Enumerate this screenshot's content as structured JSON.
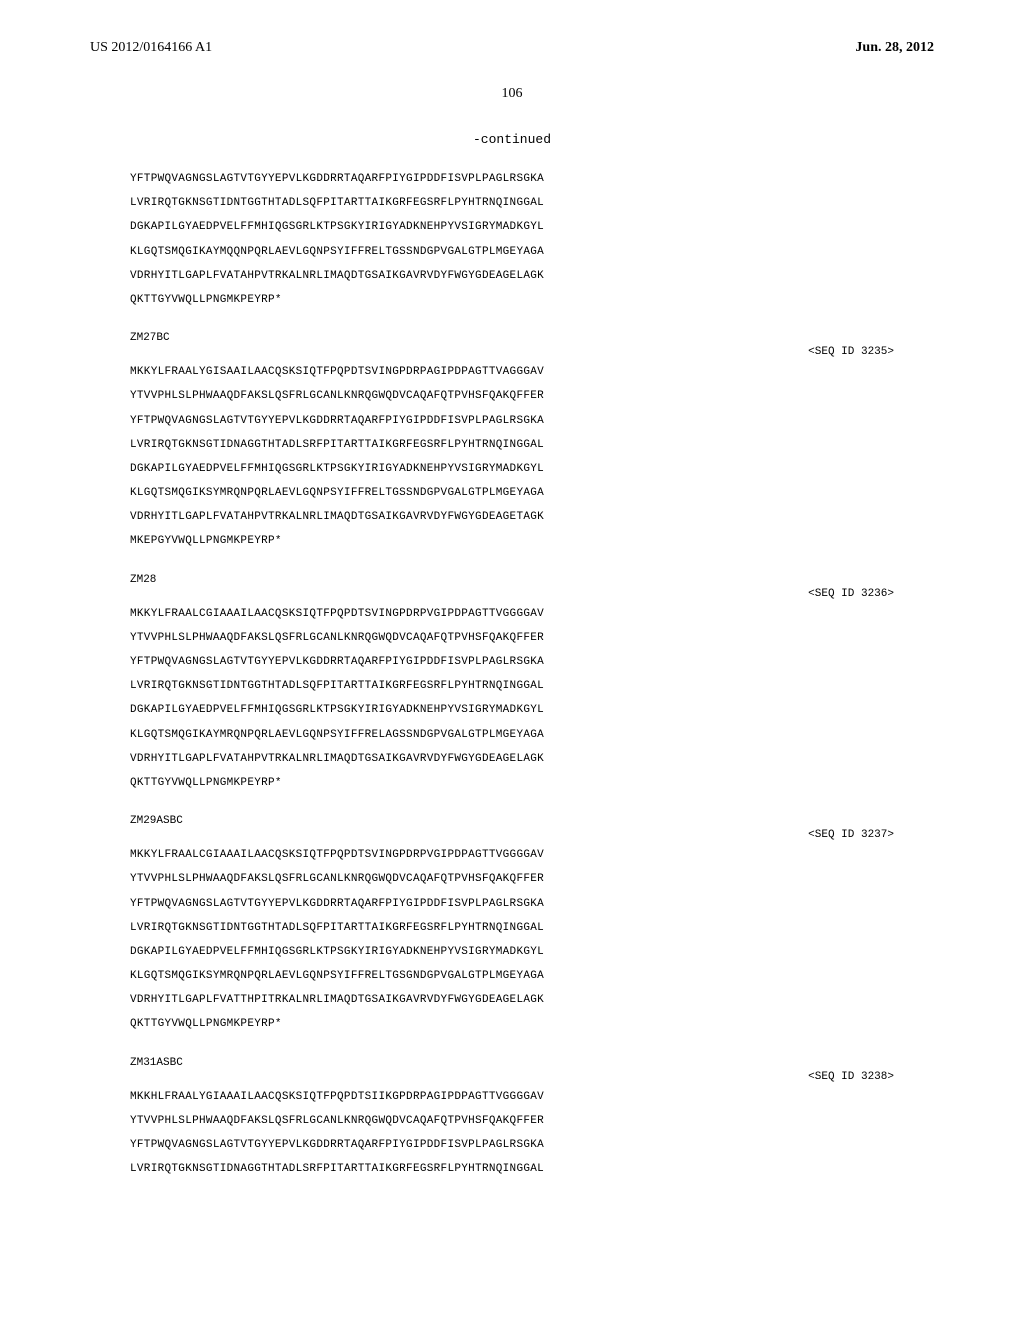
{
  "header": {
    "pub_number": "US 2012/0164166 A1",
    "pub_date": "Jun. 28, 2012"
  },
  "page_number": "106",
  "continued_label": "-continued",
  "sequences": [
    {
      "label": null,
      "seq_id": null,
      "lines": [
        "YFTPWQVAGNGSLAGTVTGYYEPVLKGDDRRTAQARFPIYGIPDDFISVPLPAGLRSGKA",
        "LVRIRQTGKNSGTIDNTGGTHTADLSQFPITARTTAIKGRFEGSRFLPYHTRNQINGGAL",
        "DGKAPILGYAEDPVELFFMHIQGSGRLKTPSGKYIRIGYADKNEHPYVSIGRYMADKGYL",
        "KLGQTSMQGIKAYMQQNPQRLAEVLGQNPSYIFFRELTGSSNDGPVGALGTPLMGEYAGA",
        "VDRHYITLGAPLFVATAHPVTRKALNRLIMAQDTGSAIKGAVRVDYFWGYGDEAGELAGK",
        "QKTTGYVWQLLPNGMKPEYRP*"
      ]
    },
    {
      "label": "ZM27BC",
      "seq_id": "<SEQ ID 3235>",
      "lines": [
        "MKKYLFRAALYGISAAILAACQSKSIQTFPQPDTSVINGPDRPAGIPDPAGTTVAGGGAV",
        "YTVVPHLSLPHWAAQDFAKSLQSFRLGCANLKNRQGWQDVCAQAFQTPVHSFQAKQFFER",
        "YFTPWQVAGNGSLAGTVTGYYEPVLKGDDRRTAQARFPIYGIPDDFISVPLPAGLRSGKA",
        "LVRIRQTGKNSGTIDNAGGTHTADLSRFPITARTTAIKGRFEGSRFLPYHTRNQINGGAL",
        "DGKAPILGYAEDPVELFFMHIQGSGRLKTPSGKYIRIGYADKNEHPYVSIGRYMADKGYL",
        "KLGQTSMQGIKSYMRQNPQRLAEVLGQNPSYIFFRELTGSSNDGPVGALGTPLMGEYAGA",
        "VDRHYITLGAPLFVATAHPVTRKALNRLIMAQDTGSAIKGAVRVDYFWGYGDEAGETAGK",
        "MKEPGYVWQLLPNGMKPEYRP*"
      ]
    },
    {
      "label": "ZM28",
      "seq_id": "<SEQ ID 3236>",
      "lines": [
        "MKKYLFRAALCGIAAAILAACQSKSIQTFPQPDTSVINGPDRPVGIPDPAGTTVGGGGAV",
        "YTVVPHLSLPHWAAQDFAKSLQSFRLGCANLKNRQGWQDVCAQAFQTPVHSFQAKQFFER",
        "YFTPWQVAGNGSLAGTVTGYYEPVLKGDDRRTAQARFPIYGIPDDFISVPLPAGLRSGKA",
        "LVRIRQTGKNSGTIDNTGGTHTADLSQFPITARTTAIKGRFEGSRFLPYHTRNQINGGAL",
        "DGKAPILGYAEDPVELFFMHIQGSGRLKTPSGKYIRIGYADKNEHPYVSIGRYMADKGYL",
        "KLGQTSMQGIKAYMRQNPQRLAEVLGQNPSYIFFRELAGSSNDGPVGALGTPLMGEYAGA",
        "VDRHYITLGAPLFVATAHPVTRKALNRLIMAQDTGSAIKGAVRVDYFWGYGDEAGELAGK",
        "QKTTGYVWQLLPNGMKPEYRP*"
      ]
    },
    {
      "label": "ZM29ASBC",
      "seq_id": "<SEQ ID 3237>",
      "lines": [
        "MKKYLFRAALCGIAAAILAACQSKSIQTFPQPDTSVINGPDRPVGIPDPAGTTVGGGGAV",
        "YTVVPHLSLPHWAAQDFAKSLQSFRLGCANLKNRQGWQDVCAQAFQTPVHSFQAKQFFER",
        "YFTPWQVAGNGSLAGTVTGYYEPVLKGDDRRTAQARFPIYGIPDDFISVPLPAGLRSGKA",
        "LVRIRQTGKNSGTIDNTGGTHTADLSQFPITARTTAIKGRFEGSRFLPYHTRNQINGGAL",
        "DGKAPILGYAEDPVELFFMHIQGSGRLKTPSGKYIRIGYADKNEHPYVSIGRYMADKGYL",
        "KLGQTSMQGIKSYMRQNPQRLAEVLGQNPSYIFFRELTGSGNDGPVGALGTPLMGEYAGA",
        "VDRHYITLGAPLFVATTHPITRKALNRLIMAQDTGSAIKGAVRVDYFWGYGDEAGELAGK",
        "QKTTGYVWQLLPNGMKPEYRP*"
      ]
    },
    {
      "label": "ZM31ASBC",
      "seq_id": "<SEQ ID 3238>",
      "lines": [
        "MKKHLFRAALYGIAAAILAACQSKSIQTFPQPDTSIIKGPDRPAGIPDPAGTTVGGGGAV",
        "YTVVPHLSLPHWAAQDFAKSLQSFRLGCANLKNRQGWQDVCAQAFQTPVHSFQAKQFFER",
        "YFTPWQVAGNGSLAGTVTGYYEPVLKGDDRRTAQARFPIYGIPDDFISVPLPAGLRSGKA",
        "LVRIRQTGKNSGTIDNAGGTHTADLSRFPITARTTAIKGRFEGSRFLPYHTRNQINGGAL"
      ]
    }
  ],
  "styling": {
    "background_color": "#ffffff",
    "text_color": "#000000",
    "header_font": "Georgia, Times New Roman, serif",
    "body_font": "Courier New, monospace",
    "header_font_size": 14,
    "page_number_font_size": 14,
    "sequence_font_size": 11,
    "sequence_line_height": 2.2,
    "sequence_letter_spacing": 0.3
  }
}
